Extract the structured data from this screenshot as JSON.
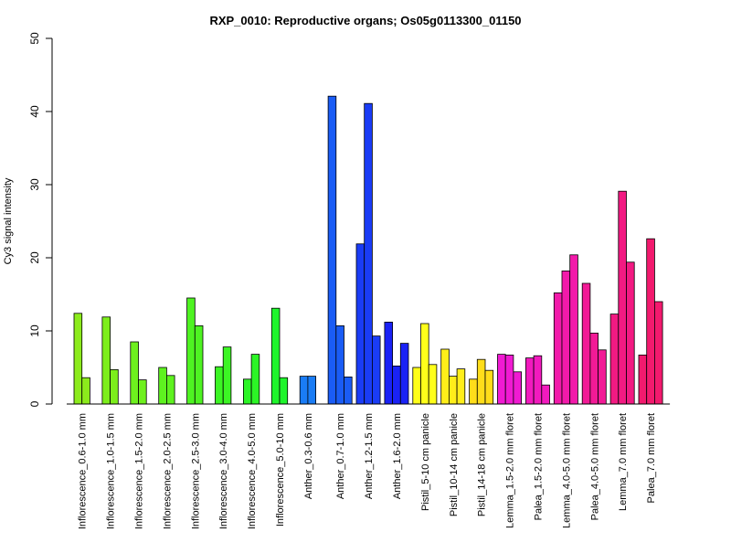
{
  "chart_data": {
    "type": "bar",
    "title": "RXP_0010: Reproductive organs; Os05g0113300_01150",
    "xlabel": "",
    "ylabel": "Cy3 signal intensity",
    "ylim": [
      0,
      50
    ],
    "yticks": [
      0,
      10,
      20,
      30,
      40,
      50
    ],
    "grid": false,
    "legend": "none",
    "groups": [
      {
        "label": "Inflorescence_0.6-1.0 mm",
        "values": [
          12.4,
          3.6
        ],
        "color": "#8CEB1C"
      },
      {
        "label": "Inflorescence_1.0-1.5 mm",
        "values": [
          11.9,
          4.7
        ],
        "color": "#7DEE1C"
      },
      {
        "label": "Inflorescence_1.5-2.0 mm",
        "values": [
          8.5,
          3.3
        ],
        "color": "#6EF01E"
      },
      {
        "label": "Inflorescence_2.0-2.5 mm",
        "values": [
          5.0,
          3.9
        ],
        "color": "#5EF220"
      },
      {
        "label": "Inflorescence_2.5-3.0 mm",
        "values": [
          14.5,
          10.7
        ],
        "color": "#4EF322"
      },
      {
        "label": "Inflorescence_3.0-4.0 mm",
        "values": [
          5.1,
          7.8
        ],
        "color": "#3CF524"
      },
      {
        "label": "Inflorescence_4.0-5.0 mm",
        "values": [
          3.4,
          6.8
        ],
        "color": "#2CF526"
      },
      {
        "label": "Inflorescence_5.0-10 mm",
        "values": [
          13.1,
          3.6
        ],
        "color": "#1EF52C"
      },
      {
        "label": "Anther_0.3-0.6 mm",
        "values": [
          3.8,
          3.8
        ],
        "color": "#1A7CF5"
      },
      {
        "label": "Anther_0.7-1.0 mm",
        "values": [
          42.1,
          10.7,
          3.7
        ],
        "color": "#1A5CF5"
      },
      {
        "label": "Anther_1.2-1.5 mm",
        "values": [
          21.9,
          41.1,
          9.3
        ],
        "color": "#1A3CF5"
      },
      {
        "label": "Anther_1.6-2.0 mm",
        "values": [
          11.2,
          5.2,
          8.3
        ],
        "color": "#1A22F5"
      },
      {
        "label": "Pistil_5-10 cm panicle",
        "values": [
          5.0,
          11.0,
          5.4
        ],
        "color": "#FFFF1A"
      },
      {
        "label": "Pistil_10-14 cm panicle",
        "values": [
          7.5,
          3.8,
          4.8
        ],
        "color": "#FFEE1A"
      },
      {
        "label": "Pistil_14-18 cm panicle",
        "values": [
          3.4,
          6.1,
          4.6
        ],
        "color": "#FFDD1A"
      },
      {
        "label": "Lemma_1.5-2.0 mm floret",
        "values": [
          6.8,
          6.7,
          4.4
        ],
        "color": "#F01AD2"
      },
      {
        "label": "Palea_1.5-2.0 mm floret",
        "values": [
          6.3,
          6.6,
          2.6
        ],
        "color": "#F21ABE"
      },
      {
        "label": "Lemma_4.0-5.0 mm floret",
        "values": [
          15.2,
          18.2,
          20.4
        ],
        "color": "#F21AAA"
      },
      {
        "label": "Palea_4.0-5.0 mm floret",
        "values": [
          16.5,
          9.7,
          7.4
        ],
        "color": "#F21A96"
      },
      {
        "label": "Lemma_7.0 mm floret",
        "values": [
          12.3,
          29.1,
          19.4
        ],
        "color": "#F21A82"
      },
      {
        "label": "Palea_7.0 mm floret",
        "values": [
          6.7,
          22.6,
          14.0
        ],
        "color": "#F21A6E"
      }
    ]
  }
}
